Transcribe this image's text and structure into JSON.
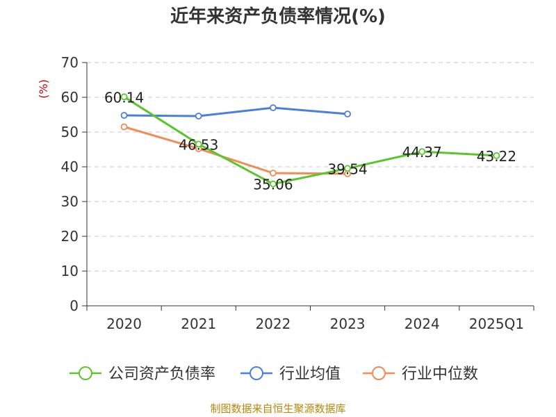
{
  "chart_data": {
    "type": "line",
    "title": "近年来资产负债率情况(%)",
    "ylabel": "(%)",
    "xlabel": "",
    "categories": [
      "2020",
      "2021",
      "2022",
      "2023",
      "2024",
      "2025Q1"
    ],
    "ylim": [
      0,
      70
    ],
    "yticks": [
      0,
      10,
      20,
      30,
      40,
      50,
      60,
      70
    ],
    "grid": true,
    "legend_position": "bottom",
    "series": [
      {
        "name": "公司资产负债率",
        "color": "#59c72c",
        "values": [
          60.14,
          46.53,
          35.06,
          39.54,
          44.37,
          43.22
        ],
        "labels": [
          "60.14",
          "46.53",
          "35.06",
          "39.54",
          "44.37",
          "43.22"
        ]
      },
      {
        "name": "行业均值",
        "color": "#4a7fdc",
        "values": [
          54.8,
          54.6,
          57.0,
          55.2,
          null,
          null
        ]
      },
      {
        "name": "行业中位数",
        "color": "#f08c55",
        "values": [
          51.5,
          45.2,
          38.2,
          38.0,
          null,
          null
        ]
      }
    ]
  },
  "source": "制图数据来自恒生聚源数据库"
}
